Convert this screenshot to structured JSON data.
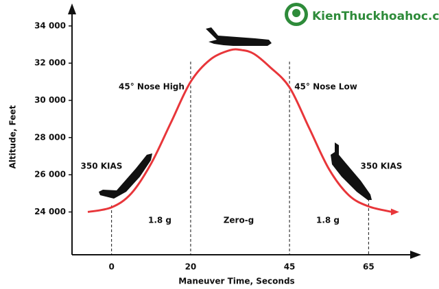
{
  "chart_data": {
    "type": "line",
    "watermark": "KienThuckhoahoc.com",
    "xlabel": "Maneuver Time, Seconds",
    "ylabel": "Altitude, Feet",
    "xlim": [
      -10,
      75
    ],
    "xticks": [
      0,
      20,
      45,
      65
    ],
    "ylim": [
      21700,
      35100
    ],
    "yticks": [
      {
        "value": 24000,
        "label": "24 000"
      },
      {
        "value": 26000,
        "label": "26 000"
      },
      {
        "value": 28000,
        "label": "28 000"
      },
      {
        "value": 30000,
        "label": "30 000"
      },
      {
        "value": 32000,
        "label": "32 000"
      },
      {
        "value": 34000,
        "label": "34 000"
      }
    ],
    "series": [
      {
        "color": "#e8363a",
        "x": [
          -6,
          0,
          5,
          10,
          15,
          20,
          25,
          30,
          33,
          36,
          40,
          45,
          50,
          55,
          60,
          65,
          71
        ],
        "values": [
          24000,
          24250,
          25000,
          26600,
          28800,
          31000,
          32200,
          32700,
          32700,
          32500,
          31800,
          30700,
          28500,
          26300,
          24900,
          24300,
          24000
        ]
      }
    ],
    "annotations": [
      "45° Nose High",
      "45° Nose Low",
      "350 KIAS",
      "350 KIAS",
      "1.8 g",
      "Zero-g",
      "1.8 g"
    ]
  }
}
